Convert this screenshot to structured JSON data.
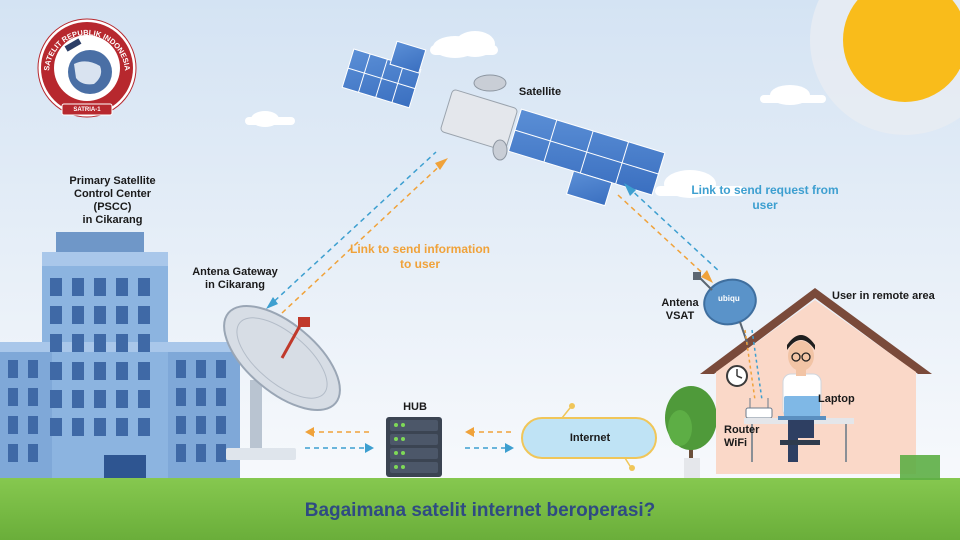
{
  "logo": {
    "ring_text": "SATELIT REPUBLIK INDONESIA",
    "badge_text": "SATRIA-1"
  },
  "labels": {
    "satellite": "Satellite",
    "pscc_line1": "Primary Satellite",
    "pscc_line2": "Control Center",
    "pscc_line3": "(PSCC)",
    "pscc_line4": "in Cikarang",
    "gateway_line1": "Antena Gateway",
    "gateway_line2": "in Cikarang",
    "hub": "HUB",
    "internet": "Internet",
    "vsat_line1": "Antena",
    "vsat_line2": "VSAT",
    "vsat_brand": "ubiqu",
    "user_area": "User in remote area",
    "laptop": "Laptop",
    "router_line1": "Router",
    "router_line2": "WiFi"
  },
  "links": {
    "to_user_line1": "Link to send information",
    "to_user_line2": "to user",
    "from_user_line1": "Link to send request from",
    "from_user_line2": "user"
  },
  "footer": {
    "title": "Bagaimana satelit internet beroperasi?"
  },
  "colors": {
    "sky_top": "#d9e6f4",
    "sky_bottom": "#f6f8fb",
    "grass": "#7dc047",
    "building": "#8cb4e0",
    "sun": "#f9bc1b",
    "orange_link": "#f0a23a",
    "blue_link": "#3d9fd0",
    "footer_text": "#2f4b82",
    "house_wall": "#fad8c8",
    "house_roof": "#7a4a3a"
  },
  "icons": [
    "satellite-icon",
    "gateway-dish-icon",
    "hub-server-icon",
    "cloud-icon",
    "vsat-dish-icon",
    "router-icon",
    "laptop-icon",
    "clock-icon",
    "tree-icon",
    "person-icon"
  ]
}
